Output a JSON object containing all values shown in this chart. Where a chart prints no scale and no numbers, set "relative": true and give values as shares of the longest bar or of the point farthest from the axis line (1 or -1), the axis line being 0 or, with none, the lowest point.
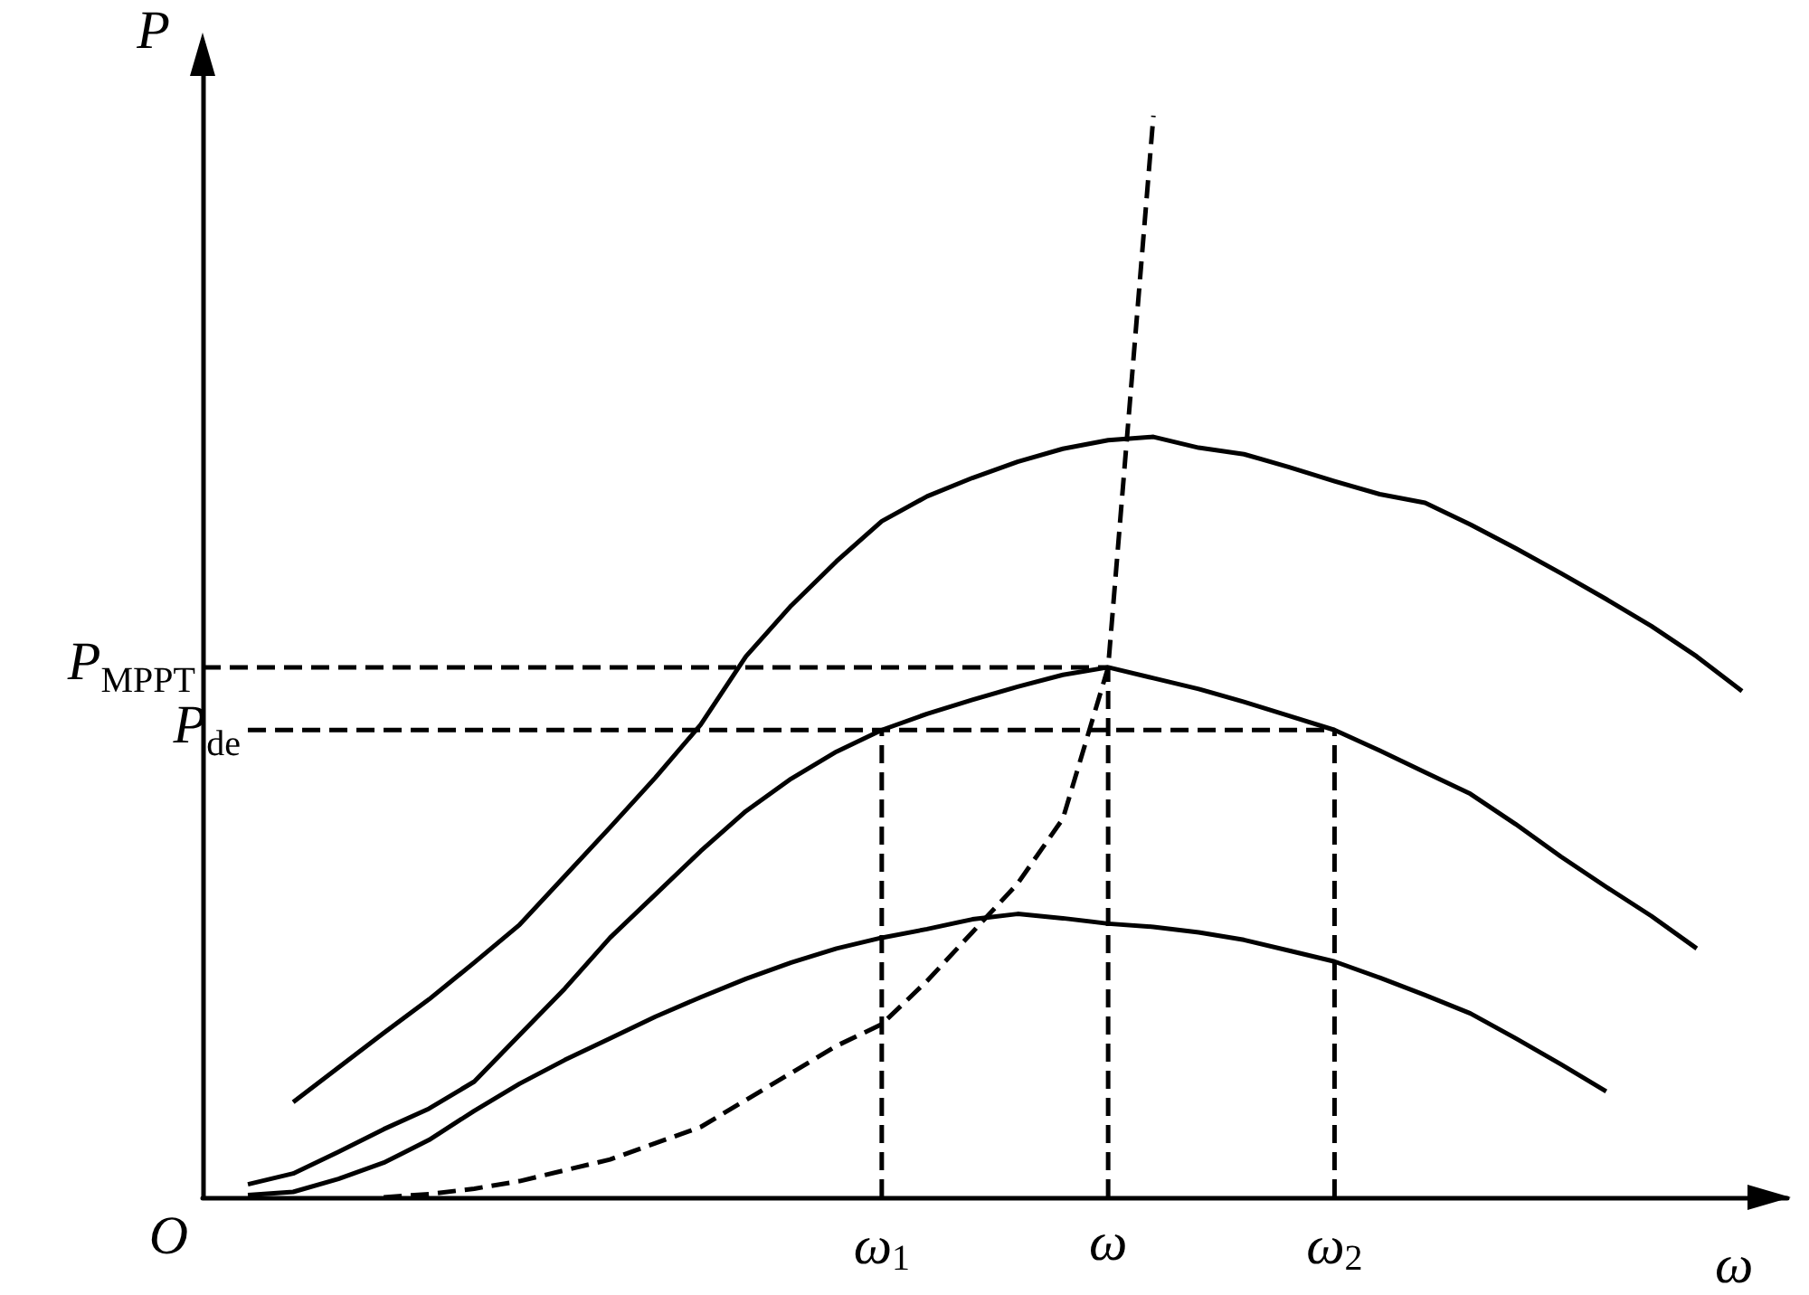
{
  "chart_data": {
    "type": "line",
    "relative": true,
    "xlabel": "ω",
    "ylabel": "P",
    "categories": [
      null,
      null,
      null,
      null,
      null,
      null,
      null,
      null,
      null,
      null,
      null,
      null,
      null,
      null,
      null,
      "ω$_{1}$",
      null,
      null,
      null,
      null,
      "ω",
      null,
      null,
      null,
      null,
      "ω$_{2}$",
      null,
      null,
      null,
      null,
      null,
      null,
      null,
      null,
      null,
      null
    ],
    "marker": "none",
    "grid": false,
    "series": [
      {
        "color": "#000000",
        "values": [
          null,
          null,
          0.088,
          0.12,
          0.152,
          0.183,
          0.217,
          0.252,
          0.297,
          0.342,
          0.388,
          0.437,
          0.5,
          0.547,
          0.588,
          0.625,
          0.648,
          0.665,
          0.68,
          0.692,
          0.7,
          0.703,
          0.693,
          0.687,
          0.675,
          0.662,
          0.65,
          0.642,
          0.622,
          0.6,
          0.577,
          0.553,
          0.528,
          0.5,
          0.468,
          null
        ]
      },
      {
        "color": "#000000",
        "values": [
          null,
          0.012,
          0.022,
          0.042,
          0.063,
          0.082,
          0.107,
          0.15,
          0.193,
          0.24,
          0.28,
          0.32,
          0.357,
          0.387,
          0.412,
          0.432,
          0.447,
          0.46,
          0.472,
          0.483,
          0.49,
          0.48,
          0.47,
          0.458,
          0.445,
          0.432,
          0.413,
          0.393,
          0.373,
          0.345,
          0.315,
          0.287,
          0.26,
          0.23,
          null,
          null
        ]
      },
      {
        "color": "#000000",
        "values": [
          null,
          0.002,
          0.005,
          0.017,
          0.032,
          0.053,
          0.08,
          0.105,
          0.127,
          0.147,
          0.167,
          0.185,
          0.202,
          0.217,
          0.23,
          0.24,
          0.248,
          0.257,
          0.262,
          0.258,
          0.253,
          0.25,
          0.245,
          0.238,
          0.228,
          0.218,
          0.203,
          0.187,
          0.17,
          0.147,
          0.123,
          0.098,
          null,
          null,
          null,
          null
        ]
      },
      {
        "color": "#000000",
        "line_style": "dashed",
        "values": [
          null,
          null,
          null,
          null,
          0,
          0.003,
          0.008,
          0.015,
          0.025,
          0.035,
          0.05,
          0.065,
          0.09,
          0.115,
          0.14,
          0.16,
          0.2,
          0.245,
          0.29,
          0.35,
          0.49,
          1,
          null,
          null,
          null,
          null,
          null,
          null,
          null,
          null,
          null,
          null,
          null,
          null,
          null,
          null
        ]
      },
      {
        "name": "P$_{MPPT}$",
        "color": "#000000",
        "line_style": "dashed",
        "values": [
          0.49,
          0.49,
          0.49,
          0.49,
          0.49,
          0.49,
          0.49,
          0.49,
          0.49,
          0.49,
          0.49,
          0.49,
          0.49,
          0.49,
          0.49,
          0.49,
          0.49,
          0.49,
          0.49,
          0.49,
          0.49,
          null,
          null,
          null,
          null,
          null,
          null,
          null,
          null,
          null,
          null,
          null,
          null,
          null,
          null,
          null
        ]
      },
      {
        "name": "P$_{de}$",
        "color": "#000000",
        "line_style": "dashed",
        "values": [
          null,
          0.432,
          0.432,
          0.432,
          0.432,
          0.432,
          0.432,
          0.432,
          0.432,
          0.432,
          0.432,
          0.432,
          0.432,
          0.432,
          0.432,
          0.432,
          0.432,
          0.432,
          0.432,
          0.432,
          0.432,
          0.432,
          0.432,
          0.432,
          0.432,
          0.432,
          null,
          null,
          null,
          null,
          null,
          null,
          null,
          null,
          null,
          null
        ]
      },
      {
        "color": "#000000",
        "line_style": "dashed",
        "x": [
          "ω$_{1}$",
          "ω$_{1}$"
        ],
        "values": [
          0,
          0.432
        ]
      },
      {
        "color": "#000000",
        "line_style": "dashed",
        "x": [
          "ω",
          "ω"
        ],
        "values": [
          0,
          0.49
        ]
      },
      {
        "color": "#000000",
        "line_style": "dashed",
        "x": [
          "ω$_{2}$",
          "ω$_{2}$"
        ],
        "values": [
          0,
          0.432
        ]
      }
    ],
    "annotations": [
      "O"
    ]
  }
}
